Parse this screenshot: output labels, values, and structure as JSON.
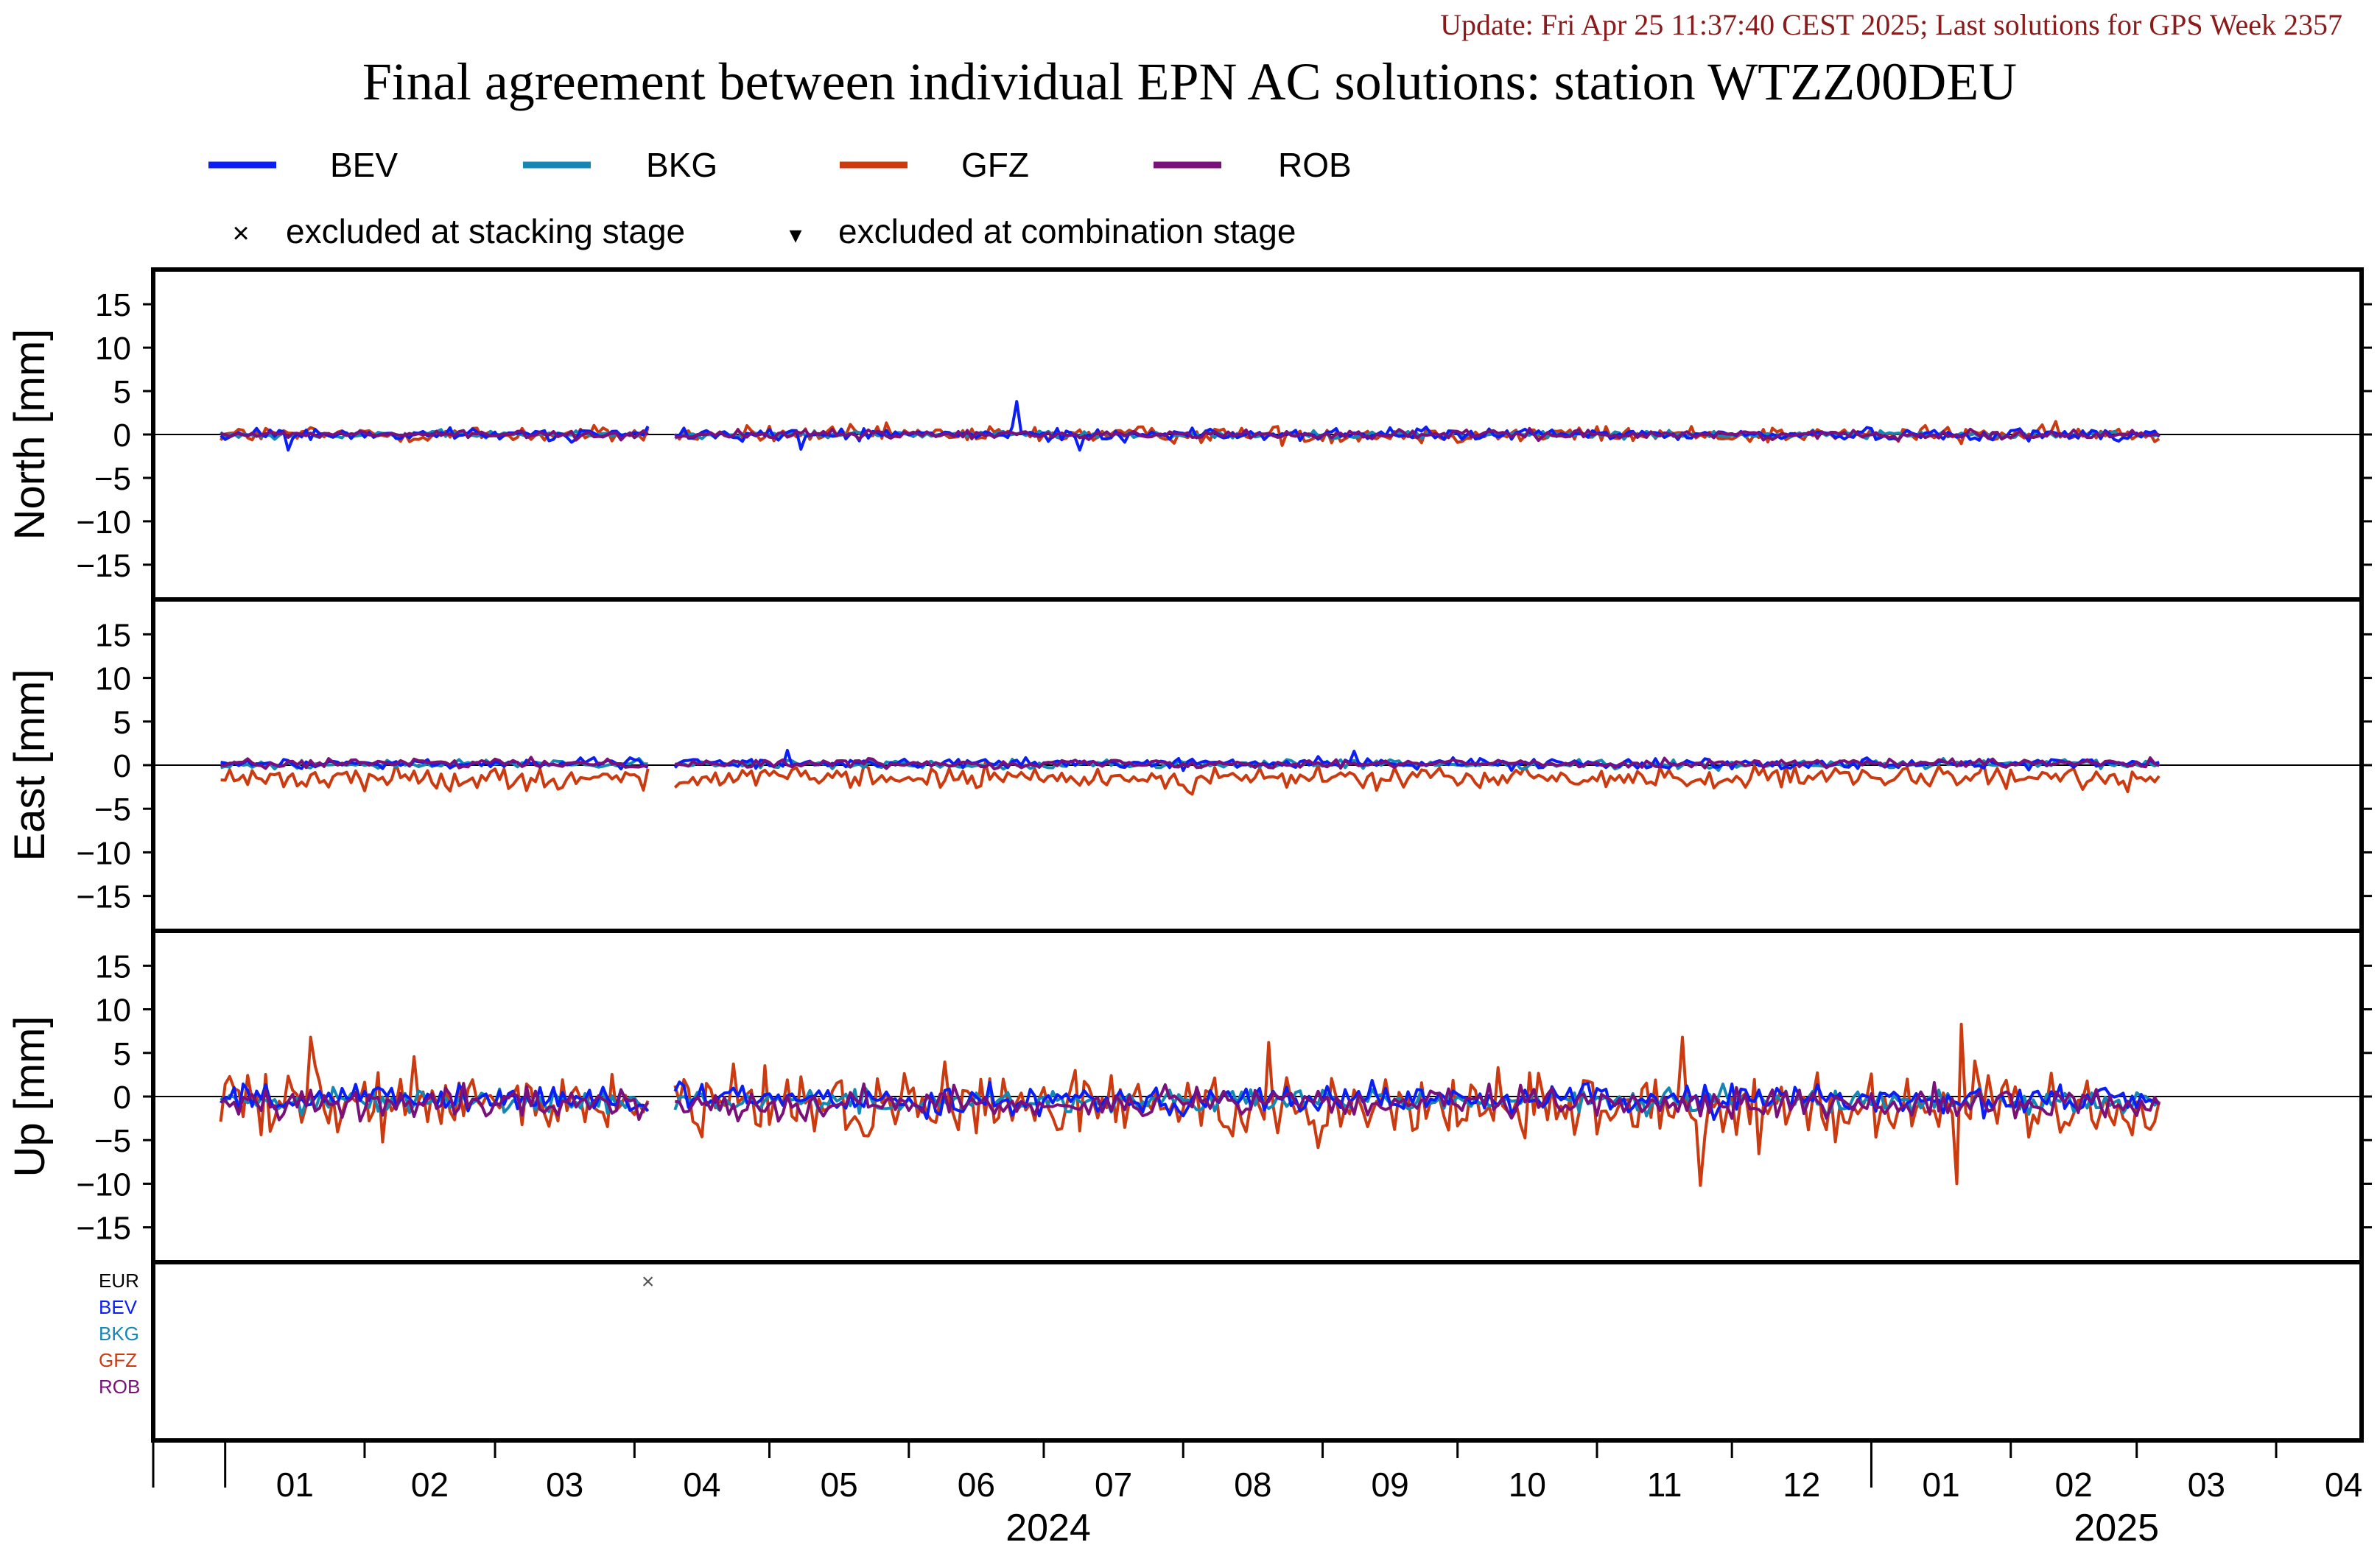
{
  "update_text": "Update: Fri Apr 25 11:37:40 CEST 2025; Last solutions for GPS Week 2357",
  "title": "Final agreement between individual EPN AC solutions: station WTZZ00DEU",
  "legend": [
    {
      "name": "BEV",
      "color": "#0a1ef5"
    },
    {
      "name": "BKG",
      "color": "#1487b4"
    },
    {
      "name": "GFZ",
      "color": "#cc3a10"
    },
    {
      "name": "ROB",
      "color": "#7a117a"
    }
  ],
  "markers": {
    "stacking": {
      "symbol": "×",
      "label": "excluded at stacking stage"
    },
    "combination": {
      "symbol": "▾",
      "label": "excluded at combination stage"
    }
  },
  "exclusion_panel": {
    "rows": [
      {
        "name": "EUR",
        "color": "#000000"
      },
      {
        "name": "BEV",
        "color": "#0a1ef5"
      },
      {
        "name": "BKG",
        "color": "#1487b4"
      },
      {
        "name": "GFZ",
        "color": "#cc3a10"
      },
      {
        "name": "ROB",
        "color": "#7a117a"
      }
    ],
    "excluded": [
      {
        "row": "EUR",
        "date": "2024-04-04",
        "marker": "×"
      }
    ]
  },
  "x_axis": {
    "months": [
      "01",
      "02",
      "03",
      "04",
      "05",
      "06",
      "07",
      "08",
      "09",
      "10",
      "11",
      "12",
      "01",
      "02",
      "03",
      "04"
    ],
    "years": [
      "2024",
      "2025"
    ]
  },
  "chart_data": [
    {
      "type": "line",
      "panel": "north",
      "ylabel": "North [mm]",
      "ylim": [
        -19,
        19
      ],
      "yticks": [
        15,
        10,
        5,
        0,
        -5,
        -10,
        -15
      ],
      "xlim": [
        "2023-12-16",
        "2025-04-20"
      ],
      "data_gap": [
        "2024-04-05",
        "2024-04-09"
      ],
      "noise_level_mm": {
        "BEV": 0.5,
        "BKG": 0.3,
        "GFZ": 0.7,
        "ROB": 0.35
      },
      "highlighted_points": [
        {
          "series": "BEV",
          "date": "2024-06-25",
          "value": 3.8
        },
        {
          "series": "BEV",
          "date": "2024-01-15",
          "value": -1.8
        },
        {
          "series": "BEV",
          "date": "2024-05-08",
          "value": -1.7
        },
        {
          "series": "BEV",
          "date": "2024-07-09",
          "value": -1.8
        }
      ]
    },
    {
      "type": "line",
      "panel": "east",
      "ylabel": "East [mm]",
      "ylim": [
        -19,
        19
      ],
      "yticks": [
        15,
        10,
        5,
        0,
        -5,
        -10,
        -15
      ],
      "xlim": [
        "2023-12-16",
        "2025-04-20"
      ],
      "data_gap": [
        "2024-04-05",
        "2024-04-09"
      ],
      "noise_level_mm": {
        "BEV": 0.4,
        "BKG": 0.35,
        "GFZ": 0.9,
        "ROB": 0.35
      },
      "series_mean_mm": {
        "BEV": 0.2,
        "BKG": 0.1,
        "GFZ": -1.5,
        "ROB": 0.2
      },
      "highlighted_points": [
        {
          "series": "BEV",
          "date": "2024-05-05",
          "value": 1.7
        },
        {
          "series": "BEV",
          "date": "2024-09-08",
          "value": 1.6
        }
      ]
    },
    {
      "type": "line",
      "panel": "up",
      "ylabel": "Up [mm]",
      "ylim": [
        -19,
        19
      ],
      "yticks": [
        15,
        10,
        5,
        0,
        -5,
        -10,
        -15
      ],
      "xlim": [
        "2023-12-16",
        "2025-04-20"
      ],
      "data_gap": [
        "2024-04-05",
        "2024-04-09"
      ],
      "noise_level_mm": {
        "BEV": 1.2,
        "BKG": 1.0,
        "GFZ": 3.0,
        "ROB": 1.2
      },
      "series_mean_mm": {
        "BEV": -0.3,
        "BKG": -0.5,
        "GFZ": -1.0,
        "ROB": -0.8
      },
      "highlighted_points": [
        {
          "series": "GFZ",
          "date": "2024-01-20",
          "value": 6.8
        },
        {
          "series": "GFZ",
          "date": "2024-08-20",
          "value": 6.2
        },
        {
          "series": "GFZ",
          "date": "2024-11-20",
          "value": 6.8
        },
        {
          "series": "GFZ",
          "date": "2025-01-21",
          "value": 8.3
        },
        {
          "series": "GFZ",
          "date": "2024-11-24",
          "value": -10.2
        },
        {
          "series": "GFZ",
          "date": "2025-01-20",
          "value": -10.0
        }
      ]
    }
  ]
}
